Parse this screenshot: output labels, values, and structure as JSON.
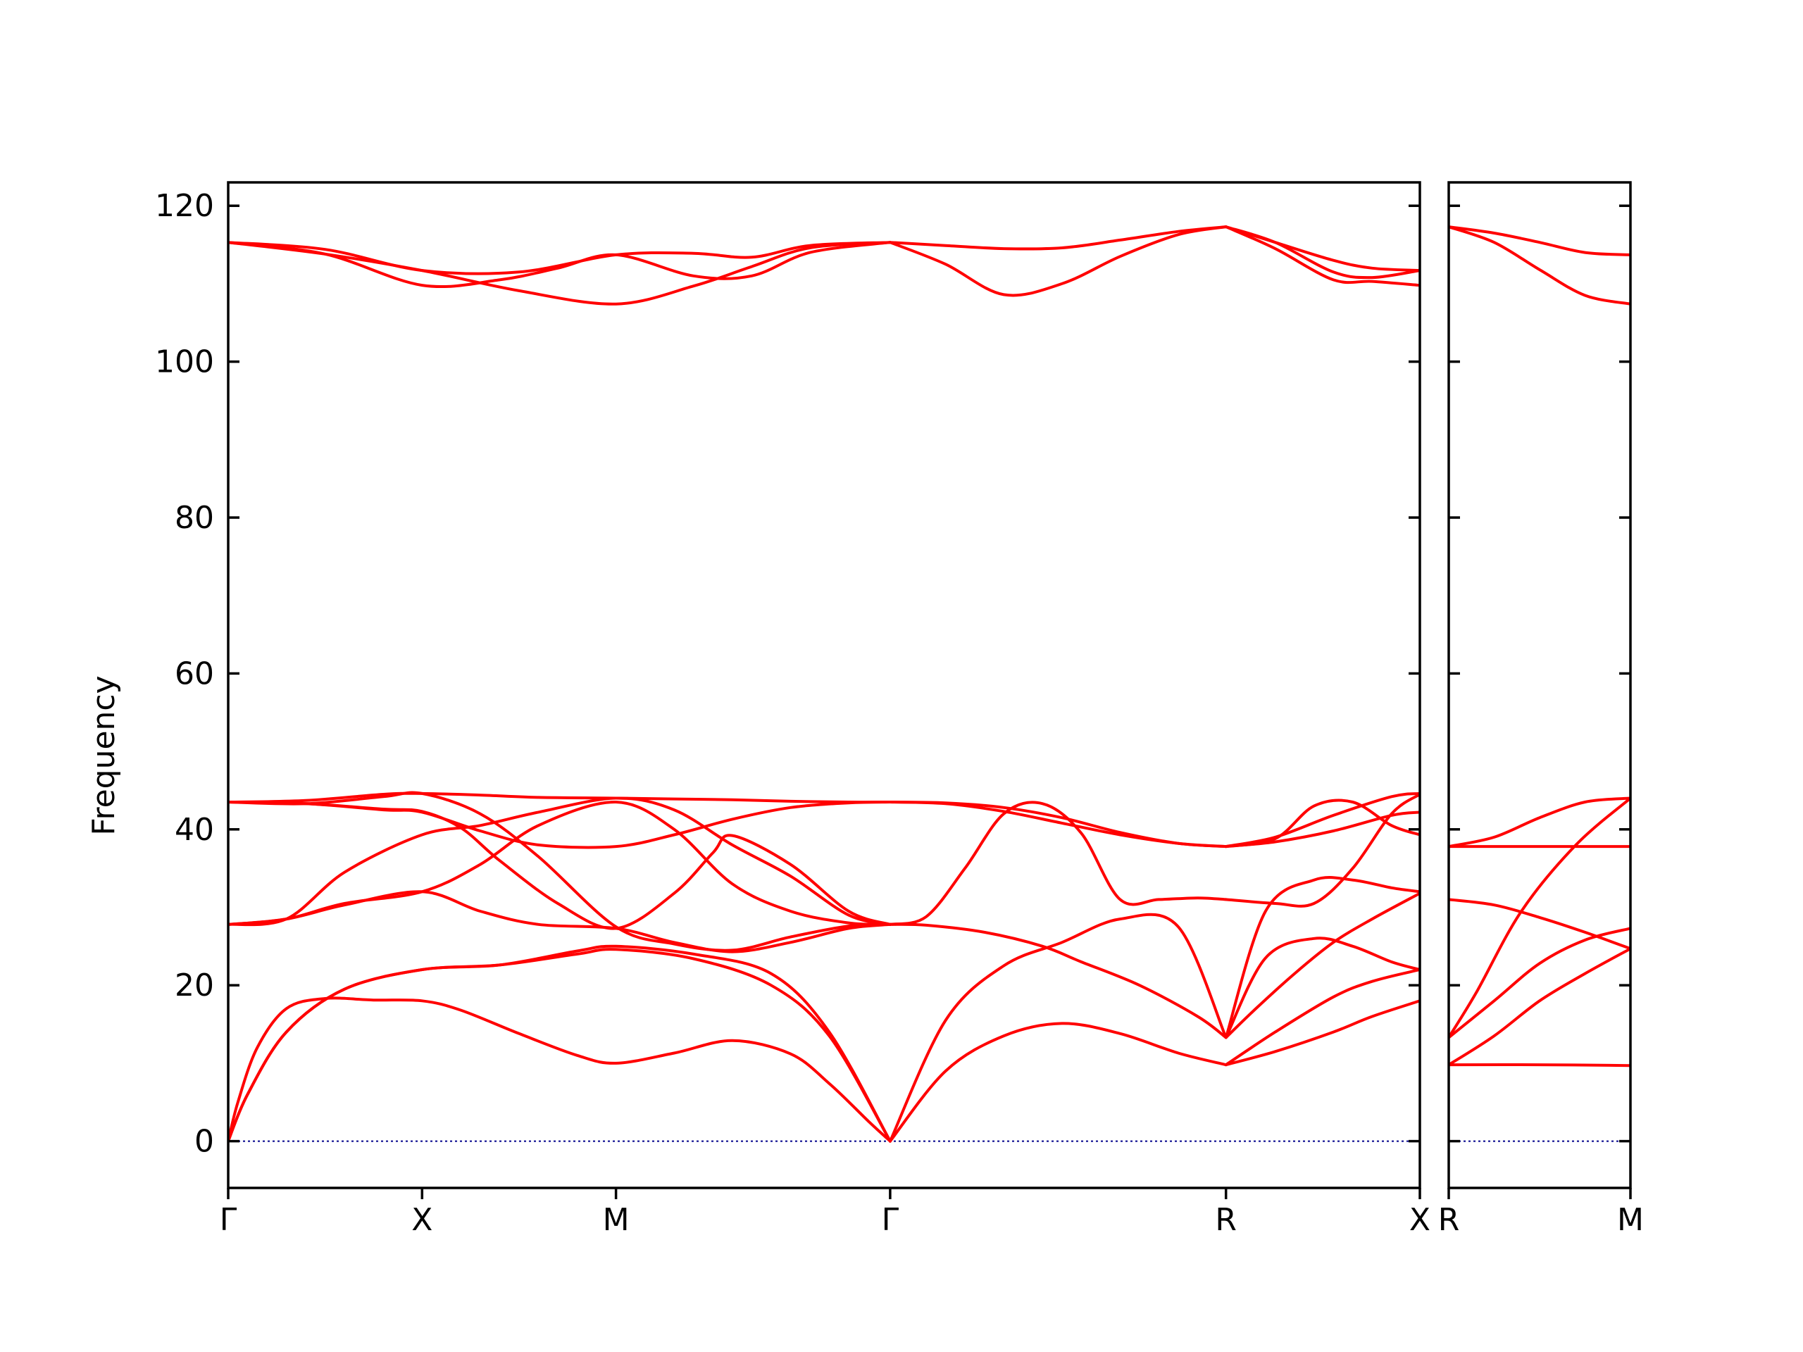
{
  "chart_data": {
    "type": "line",
    "ylabel": "Frequency",
    "ylim": [
      -6,
      123
    ],
    "yticks": [
      0,
      20,
      40,
      60,
      80,
      100,
      120
    ],
    "colors": {
      "bands": "#ff0000",
      "zero_line": "#00008b",
      "axes": "#000000"
    },
    "zero_line": {
      "y": 0,
      "style": "dotted"
    },
    "panels": [
      {
        "id": "left",
        "x_points": [
          0,
          1,
          2,
          3.414,
          5.146,
          6.146
        ],
        "tick_labels": [
          "Γ",
          "X",
          "M",
          "Γ",
          "R",
          "X"
        ],
        "series": [
          {
            "x": [
              0,
              0.05,
              0.15,
              0.3,
              0.5,
              0.75,
              1,
              1.2,
              1.5,
              1.8,
              2,
              2.3,
              2.6,
              2.9,
              3.1,
              3.3,
              3.414
            ],
            "y": [
              0,
              5,
              12,
              17,
              18.3,
              18.1,
              18,
              16.8,
              13.8,
              11,
              10,
              11.3,
              12.9,
              11.2,
              7.4,
              2.6,
              0
            ]
          },
          {
            "x": [
              0,
              0.1,
              0.3,
              0.6,
              1,
              1.4,
              1.8,
              2,
              2.4,
              2.8,
              3.1,
              3.414
            ],
            "y": [
              0,
              6,
              14,
              19.5,
              22,
              22.6,
              24,
              24.6,
              23.4,
              20,
              13.5,
              0
            ]
          },
          {
            "x": [
              0,
              0.1,
              0.3,
              0.6,
              1,
              1.4,
              1.8,
              2,
              2.4,
              2.8,
              3.1,
              3.414
            ],
            "y": [
              0,
              6,
              14,
              19.5,
              22,
              22.6,
              24.4,
              25,
              24,
              21.5,
              14,
              0
            ]
          },
          {
            "x": [
              0,
              0.3,
              0.6,
              1,
              1.3,
              1.6,
              2,
              2.3,
              2.6,
              2.9,
              3.2,
              3.414
            ],
            "y": [
              27.8,
              28.5,
              30.3,
              32,
              29.5,
              27.8,
              27.3,
              25.5,
              24.3,
              25.5,
              27.3,
              27.8
            ]
          },
          {
            "x": [
              0,
              0.3,
              0.6,
              1,
              1.3,
              1.6,
              2,
              2.3,
              2.6,
              2.9,
              3.2,
              3.414
            ],
            "y": [
              27.8,
              28.5,
              34.5,
              39.3,
              40.5,
              42.2,
              44,
              42.5,
              38,
              34,
              29,
              27.8
            ]
          },
          {
            "x": [
              0,
              0.3,
              0.6,
              1,
              1.3,
              1.6,
              2,
              2.3,
              2.6,
              2.9,
              3.2,
              3.414
            ],
            "y": [
              27.8,
              28.5,
              30.5,
              32,
              35.5,
              40.5,
              43.5,
              40,
              33,
              29.5,
              28,
              27.8
            ]
          },
          {
            "x": [
              0,
              0.4,
              0.8,
              1,
              1.3,
              1.6,
              2,
              2.3,
              2.6,
              2.9,
              3.2,
              3.414
            ],
            "y": [
              43.5,
              43.7,
              44.5,
              44.6,
              44.4,
              44.1,
              44,
              43.9,
              43.8,
              43.6,
              43.5,
              43.5
            ]
          },
          {
            "x": [
              0,
              0.4,
              0.8,
              1,
              1.3,
              1.6,
              2,
              2.3,
              2.6,
              2.9,
              3.2,
              3.414
            ],
            "y": [
              43.5,
              43.3,
              42.5,
              42.2,
              39.8,
              38,
              37.8,
              39.3,
              41.3,
              42.8,
              43.4,
              43.5
            ]
          },
          {
            "x": [
              0,
              0.4,
              0.8,
              1,
              1.2,
              1.4,
              1.7,
              2,
              2.3,
              2.5,
              2.6,
              2.9,
              3.2,
              3.414
            ],
            "y": [
              43.5,
              43.3,
              42.6,
              42.3,
              40.2,
              36,
              30.5,
              27.3,
              31.8,
              37,
              39.2,
              35.5,
              29.5,
              27.8
            ]
          },
          {
            "x": [
              0,
              0.4,
              0.8,
              1,
              1.3,
              1.6,
              2,
              2.3,
              2.6,
              2.9,
              3.2,
              3.414
            ],
            "y": [
              43.5,
              43.3,
              44.2,
              44.6,
              42,
              36.5,
              27.5,
              25.3,
              24.5,
              26.2,
              27.6,
              27.8
            ]
          },
          {
            "x": [
              0,
              0.5,
              1,
              1.5,
              2,
              2.4,
              2.7,
              3,
              3.414
            ],
            "y": [
              115.3,
              114.4,
              111.7,
              111.5,
              113.7,
              113.9,
              113.4,
              114.9,
              115.3
            ]
          },
          {
            "x": [
              0,
              0.5,
              1,
              1.5,
              2,
              2.4,
              2.7,
              3,
              3.414
            ],
            "y": [
              115.3,
              113.8,
              111.7,
              109.1,
              107.4,
              109.7,
              112.2,
              114.6,
              115.3
            ]
          },
          {
            "x": [
              0,
              0.5,
              1,
              1.4,
              1.7,
              2,
              2.4,
              2.7,
              3,
              3.414
            ],
            "y": [
              115.3,
              113.8,
              109.8,
              110.5,
              112,
              113.7,
              111,
              111,
              114,
              115.3
            ]
          },
          {
            "x": [
              3.414,
              3.7,
              4,
              4.3,
              4.6,
              4.9,
              5.146
            ],
            "y": [
              0,
              9,
              13.5,
              15.1,
              13.8,
              11.3,
              9.8
            ]
          },
          {
            "x": [
              3.414,
              3.7,
              4,
              4.3,
              4.6,
              4.9,
              5.146
            ],
            "y": [
              0,
              15.5,
              22.5,
              25.5,
              28.5,
              27.5,
              13.3
            ]
          },
          {
            "x": [
              3.414,
              3.6,
              3.9,
              4.2,
              4.4,
              4.7,
              5,
              5.146
            ],
            "y": [
              27.8,
              27.7,
              26.8,
              25,
              23,
              20,
              16,
              13.3
            ]
          },
          {
            "x": [
              3.414,
              3.6,
              3.8,
              4,
              4.2,
              4.4,
              4.6,
              4.8,
              5,
              5.146
            ],
            "y": [
              27.8,
              28.8,
              35,
              42,
              43.3,
              39.5,
              31,
              31,
              31.2,
              31
            ]
          },
          {
            "x": [
              3.414,
              3.7,
              4,
              4.3,
              4.6,
              4.9,
              5.146
            ],
            "y": [
              43.5,
              43.3,
              42.3,
              40.8,
              39.3,
              38.2,
              37.8
            ]
          },
          {
            "x": [
              3.414,
              3.7,
              4,
              4.3,
              4.6,
              4.9,
              5.146
            ],
            "y": [
              43.5,
              43.4,
              42.8,
              41.5,
              39.6,
              38.2,
              37.8
            ]
          },
          {
            "x": [
              3.414,
              3.7,
              4,
              4.3,
              4.6,
              4.9,
              5.146
            ],
            "y": [
              115.3,
              114.9,
              114.5,
              114.6,
              115.6,
              116.7,
              117.3
            ]
          },
          {
            "x": [
              3.414,
              3.7,
              4,
              4.3,
              4.6,
              4.9,
              5.146
            ],
            "y": [
              115.3,
              112.5,
              108.6,
              110,
              113.5,
              116.3,
              117.3
            ]
          },
          {
            "x": [
              5.146,
              5.4,
              5.7,
              5.9,
              6.146
            ],
            "y": [
              9.8,
              11.5,
              14,
              16,
              18
            ]
          },
          {
            "x": [
              5.146,
              5.4,
              5.7,
              5.9,
              6.146
            ],
            "y": [
              9.8,
              14,
              18.5,
              20.5,
              22
            ]
          },
          {
            "x": [
              5.146,
              5.3,
              5.5,
              5.7,
              5.9,
              6.146
            ],
            "y": [
              13.3,
              17,
              21.5,
              25.5,
              28.5,
              31.8
            ]
          },
          {
            "x": [
              5.146,
              5.35,
              5.6,
              5.8,
              6,
              6.146
            ],
            "y": [
              13.3,
              23.5,
              26,
              25,
              23,
              22
            ]
          },
          {
            "x": [
              5.146,
              5.35,
              5.6,
              5.8,
              6,
              6.146
            ],
            "y": [
              13.3,
              29.5,
              33.5,
              33.5,
              32.5,
              32
            ]
          },
          {
            "x": [
              5.146,
              5.4,
              5.6,
              5.8,
              6,
              6.146
            ],
            "y": [
              31,
              30.5,
              30.5,
              35,
              42,
              44.5
            ]
          },
          {
            "x": [
              5.146,
              5.4,
              5.6,
              5.8,
              6,
              6.146
            ],
            "y": [
              37.8,
              38.8,
              43,
              43.5,
              40.5,
              39.3
            ]
          },
          {
            "x": [
              5.146,
              5.4,
              5.7,
              6,
              6.146
            ],
            "y": [
              37.8,
              39,
              41.8,
              44.2,
              44.6
            ]
          },
          {
            "x": [
              5.146,
              5.4,
              5.7,
              6,
              6.146
            ],
            "y": [
              37.8,
              38.4,
              39.8,
              41.8,
              42.2
            ]
          },
          {
            "x": [
              5.146,
              5.4,
              5.7,
              5.9,
              6.146
            ],
            "y": [
              117.3,
              115.3,
              111.5,
              110.8,
              111.7
            ]
          },
          {
            "x": [
              5.146,
              5.4,
              5.7,
              5.9,
              6.146
            ],
            "y": [
              117.3,
              115.3,
              113,
              112,
              111.7
            ]
          },
          {
            "x": [
              5.146,
              5.4,
              5.7,
              5.9,
              6.146
            ],
            "y": [
              117.3,
              114.5,
              110.5,
              110.3,
              109.8
            ]
          },
          {
            "x": [
              0,
              6.146
            ],
            "y": [
              43.5,
              43.5
            ],
            "hidden": true
          }
        ]
      },
      {
        "id": "right",
        "x_points": [
          0,
          1
        ],
        "tick_labels": [
          "R",
          "M"
        ],
        "series": [
          {
            "x": [
              0,
              0.5,
              1
            ],
            "y": [
              9.8,
              9.8,
              9.7
            ]
          },
          {
            "x": [
              0,
              0.25,
              0.5,
              0.75,
              1
            ],
            "y": [
              9.8,
              13.5,
              18,
              21.5,
              24.7
            ]
          },
          {
            "x": [
              0,
              0.25,
              0.5,
              0.75,
              1
            ],
            "y": [
              13.3,
              18,
              22.8,
              25.8,
              27.3
            ]
          },
          {
            "x": [
              0,
              0.15,
              0.4,
              0.7,
              1
            ],
            "y": [
              13.3,
              19,
              29.5,
              38,
              44
            ]
          },
          {
            "x": [
              0,
              0.25,
              0.5,
              0.75,
              1
            ],
            "y": [
              31,
              30.3,
              28.7,
              26.8,
              24.7
            ]
          },
          {
            "x": [
              0,
              0.5,
              1
            ],
            "y": [
              37.8,
              37.8,
              37.8
            ]
          },
          {
            "x": [
              0,
              0.25,
              0.5,
              0.75,
              1
            ],
            "y": [
              37.8,
              39,
              41.5,
              43.5,
              44
            ]
          },
          {
            "x": [
              0,
              0.25,
              0.5,
              0.75,
              1
            ],
            "y": [
              117.3,
              116.5,
              115.3,
              114,
              113.7
            ]
          },
          {
            "x": [
              0,
              0.25,
              0.5,
              0.75,
              1
            ],
            "y": [
              117.3,
              115.3,
              111.8,
              108.5,
              107.4
            ]
          }
        ]
      }
    ]
  }
}
